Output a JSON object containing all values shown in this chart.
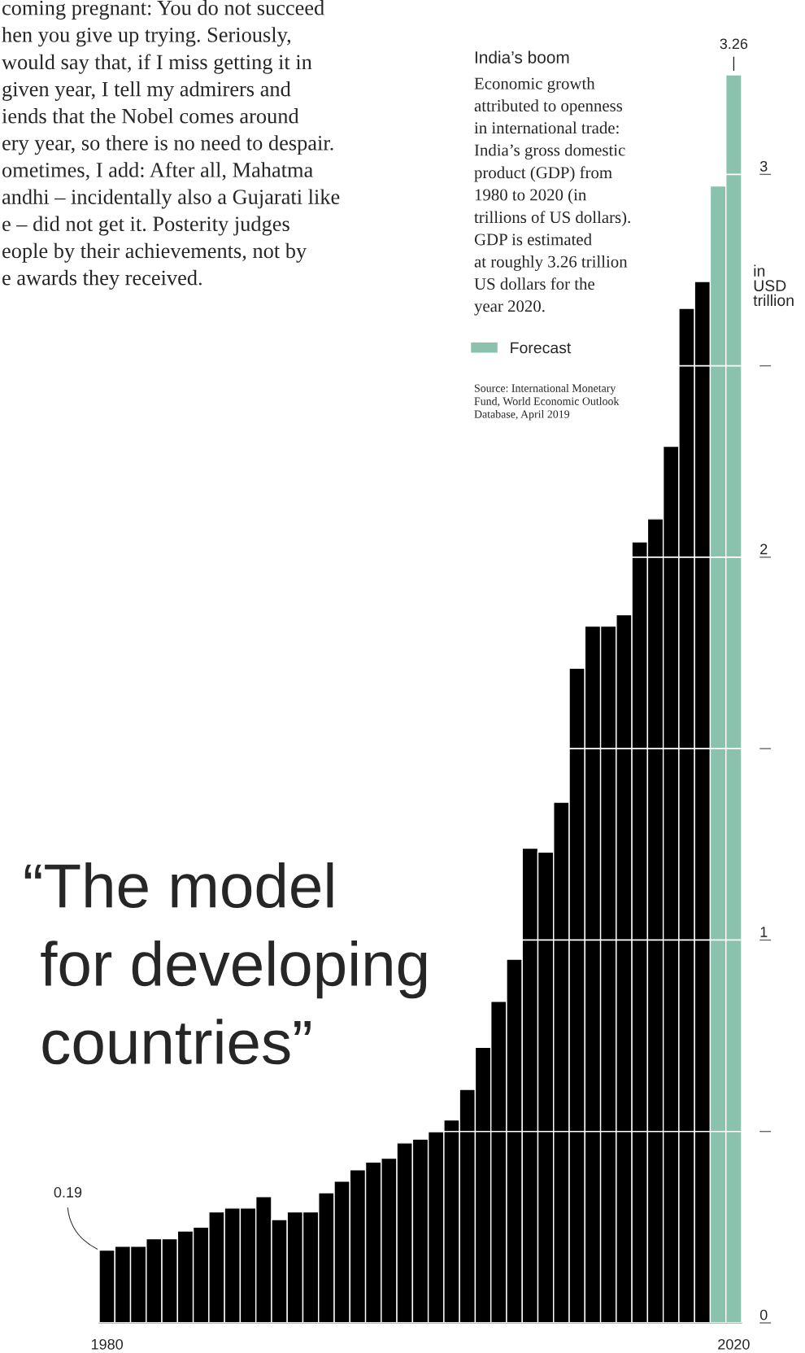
{
  "chart_data": {
    "type": "bar",
    "title": "India’s boom",
    "subtitle": "Economic growth\nattributed to openness\nin international trade:\nIndia’s gross domestic\nproduct (GDP) from\n1980 to 2020 (in\ntrillions of US dollars).\nGDP is estimated\nat roughly 3.26 trillion\nUS dollars for the\nyear 2020.",
    "ylabel": "in\nUSD\ntrillion",
    "annotations": [
      "coming pregnant: You do not succeed\nhen you give up trying. Seriously,\nwould say that, if I miss getting it in\ngiven year, I tell my admirers and\niends that the Nobel comes around\nery year, so there is no need to despair.\nometimes, I add: After all, Mahatma\nandhi – incidentally also a Gujarati like\ne – did not get it. Posterity judges\neople by their achievements, not by\ne awards they received.",
      "“The model\n for developing\n countries”",
      "Source: International Monetary\nFund, World Economic Outlook\nDatabase, April 2019"
    ],
    "categories": [
      "1980",
      null,
      null,
      null,
      null,
      null,
      null,
      null,
      null,
      null,
      null,
      null,
      null,
      null,
      null,
      null,
      null,
      null,
      null,
      null,
      null,
      null,
      null,
      null,
      null,
      null,
      null,
      null,
      null,
      null,
      null,
      null,
      null,
      null,
      null,
      null,
      null,
      null,
      null,
      null,
      "2020"
    ],
    "series": [
      {
        "color": "#000000",
        "values": [
          0.19,
          0.2,
          0.2,
          0.22,
          0.22,
          0.24,
          0.25,
          0.29,
          0.3,
          0.3,
          0.33,
          0.27,
          0.29,
          0.29,
          0.34,
          0.37,
          0.4,
          0.42,
          0.43,
          0.47,
          0.48,
          0.5,
          0.53,
          0.61,
          0.72,
          0.84,
          0.95,
          1.24,
          1.23,
          1.36,
          1.71,
          1.82,
          1.82,
          1.85,
          2.04,
          2.1,
          2.29,
          2.65,
          2.72,
          null,
          null
        ],
        "value_labels": [
          "0.19",
          null,
          null,
          null,
          null,
          null,
          null,
          null,
          null,
          null,
          null,
          null,
          null,
          null,
          null,
          null,
          null,
          null,
          null,
          null,
          null,
          null,
          null,
          null,
          null,
          null,
          null,
          null,
          null,
          null,
          null,
          null,
          null,
          null,
          null,
          null,
          null,
          null,
          null,
          null,
          null
        ]
      },
      {
        "name": "Forecast",
        "color": "#8bc2ad",
        "values": [
          null,
          null,
          null,
          null,
          null,
          null,
          null,
          null,
          null,
          null,
          null,
          null,
          null,
          null,
          null,
          null,
          null,
          null,
          null,
          null,
          null,
          null,
          null,
          null,
          null,
          null,
          null,
          null,
          null,
          null,
          null,
          null,
          null,
          null,
          null,
          null,
          null,
          null,
          null,
          2.97,
          3.26
        ],
        "value_labels": [
          null,
          null,
          null,
          null,
          null,
          null,
          null,
          null,
          null,
          null,
          null,
          null,
          null,
          null,
          null,
          null,
          null,
          null,
          null,
          null,
          null,
          null,
          null,
          null,
          null,
          null,
          null,
          null,
          null,
          null,
          null,
          null,
          null,
          null,
          null,
          null,
          null,
          null,
          null,
          null,
          "3.26"
        ]
      }
    ],
    "ylim": [
      0,
      3.26
    ],
    "yticks": [
      0,
      {
        "value": 0.5,
        "label": null
      },
      1,
      {
        "value": 1.5,
        "label": null
      },
      2,
      {
        "value": 2.5,
        "label": null
      },
      3
    ],
    "grid": "y",
    "legend": "top"
  }
}
